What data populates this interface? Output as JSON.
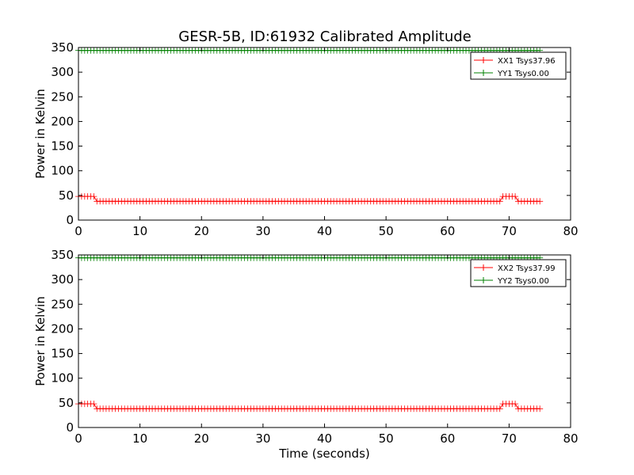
{
  "chart_data": [
    {
      "type": "line",
      "title": "GESR-5B, ID:61932 Calibrated Amplitude",
      "xlabel": "",
      "ylabel": "Power in Kelvin",
      "xlim": [
        0,
        80
      ],
      "ylim": [
        0,
        350
      ],
      "x_ticks": [
        "0",
        "10",
        "20",
        "30",
        "40",
        "50",
        "60",
        "70",
        "80"
      ],
      "y_ticks": [
        "0",
        "50",
        "100",
        "150",
        "200",
        "250",
        "300",
        "350"
      ],
      "grid": false,
      "legend_position": "top-right",
      "x": [
        0,
        2.5,
        3,
        68.5,
        69,
        71,
        71.5,
        75
      ],
      "series": [
        {
          "name": "XX1 Tsys37.96",
          "color": "#ff0000",
          "marker": "+",
          "values": [
            48,
            48,
            38,
            38,
            48,
            48,
            38,
            38
          ]
        },
        {
          "name": "YY1 Tsys0.00",
          "color": "#008000",
          "marker": "+",
          "values": [
            344,
            344,
            344,
            344,
            344,
            344,
            344,
            344
          ]
        }
      ]
    },
    {
      "type": "line",
      "title": "",
      "xlabel": "Time (seconds)",
      "ylabel": "Power in Kelvin",
      "xlim": [
        0,
        80
      ],
      "ylim": [
        0,
        350
      ],
      "x_ticks": [
        "0",
        "10",
        "20",
        "30",
        "40",
        "50",
        "60",
        "70",
        "80"
      ],
      "y_ticks": [
        "0",
        "50",
        "100",
        "150",
        "200",
        "250",
        "300",
        "350"
      ],
      "grid": false,
      "legend_position": "top-right",
      "x": [
        0,
        2.5,
        3,
        68.5,
        69,
        71,
        71.5,
        75
      ],
      "series": [
        {
          "name": "XX2 Tsys37.99",
          "color": "#ff0000",
          "marker": "+",
          "values": [
            48,
            48,
            38,
            38,
            48,
            48,
            38,
            38
          ]
        },
        {
          "name": "YY2 Tsys0.00",
          "color": "#008000",
          "marker": "+",
          "values": [
            344,
            344,
            344,
            344,
            344,
            344,
            344,
            344
          ]
        }
      ]
    }
  ]
}
